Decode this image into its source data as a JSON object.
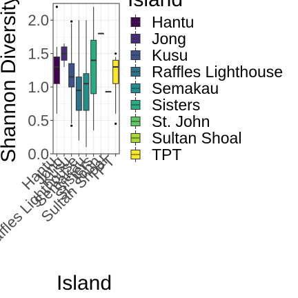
{
  "chart_data": {
    "type": "box",
    "title": "",
    "xlabel": "Island",
    "ylabel": "Shannon Diversity",
    "ylim": [
      0,
      2.25
    ],
    "yticks": [
      0.0,
      0.5,
      1.0,
      1.5,
      2.0
    ],
    "ytick_labels": [
      "0.0",
      "0.5",
      "1.0",
      "1.5",
      "2.0"
    ],
    "grid": true,
    "legend_title": "Island",
    "legend_position": "right",
    "categories": [
      "Hantu",
      "Jong",
      "Kusu",
      "Raffles Lighthouse",
      "Semakau",
      "Sisters",
      "St. John",
      "Sultan Shoal",
      "TPT"
    ],
    "colors": [
      "#440154",
      "#472D7B",
      "#3B528B",
      "#2C728E",
      "#21908C",
      "#27AD81",
      "#5DC863",
      "#AADC32",
      "#FDE725"
    ],
    "boxes": [
      {
        "name": "Hantu",
        "min": 0.6,
        "q1": 1.05,
        "median": 1.3,
        "q3": 1.45,
        "max": 1.6,
        "outliers": [
          2.2
        ]
      },
      {
        "name": "Jong",
        "min": 1.3,
        "q1": 1.4,
        "median": 1.5,
        "q3": 1.6,
        "max": 1.65,
        "outliers": []
      },
      {
        "name": "Kusu",
        "min": 0.45,
        "q1": 1.0,
        "median": 1.15,
        "q3": 1.35,
        "max": 1.95,
        "outliers": [
          0.42,
          1.98
        ]
      },
      {
        "name": "Raffles Lighthouse",
        "min": 0.2,
        "q1": 0.65,
        "median": 0.95,
        "q3": 1.15,
        "max": 2.0,
        "outliers": []
      },
      {
        "name": "Semakau",
        "min": 0.1,
        "q1": 0.65,
        "median": 1.05,
        "q3": 1.2,
        "max": 2.0,
        "outliers": []
      },
      {
        "name": "Sisters",
        "min": 0.35,
        "q1": 0.9,
        "median": 1.4,
        "q3": 1.7,
        "max": 2.2,
        "outliers": []
      },
      {
        "name": "St. John",
        "min": 1.8,
        "q1": 1.8,
        "median": 1.8,
        "q3": 1.8,
        "max": 1.8,
        "outliers": []
      },
      {
        "name": "Sultan Shoal",
        "min": 0.93,
        "q1": 0.93,
        "median": 0.93,
        "q3": 0.93,
        "max": 0.93,
        "outliers": []
      },
      {
        "name": "TPT",
        "min": 0.6,
        "q1": 1.05,
        "median": 1.3,
        "q3": 1.4,
        "max": 1.45,
        "outliers": [
          0.45,
          1.5
        ]
      }
    ]
  }
}
